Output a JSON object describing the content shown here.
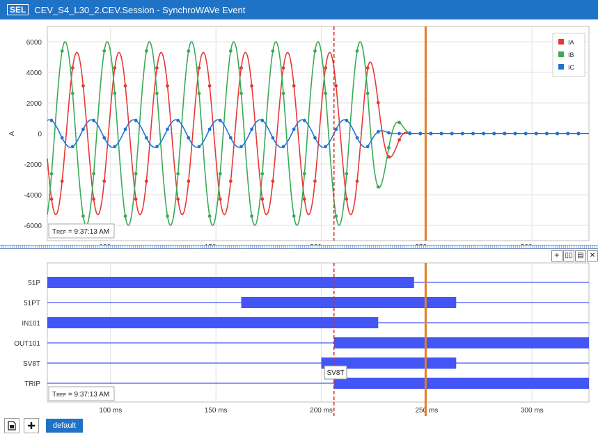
{
  "window": {
    "logo": "SEL",
    "title": "CEV_S4_L30_2.CEV.Session - SynchroWAVe Event"
  },
  "colors": {
    "accent": "#1f73c7",
    "IA": "#e53935",
    "IB": "#3aaa55",
    "IC": "#1e74d6",
    "digital": "#4455f5",
    "cursor_red": "#d32f2f",
    "cursor_orange": "#e67e22"
  },
  "analog_chart": {
    "ylabel": "A",
    "tref": "9:37:13 AM",
    "tref_prefix": "T",
    "tref_sub": "REF",
    "legend": [
      "IA",
      "IB",
      "IC"
    ]
  },
  "digital_chart": {
    "tref": "9:37:13 AM",
    "tref_prefix": "T",
    "tref_sub": "REF",
    "tooltip": "SV8T"
  },
  "pane_controls": [
    "+",
    "▯▯",
    "▤",
    "✕"
  ],
  "footer": {
    "tab": "default"
  },
  "chart_data": [
    {
      "type": "line",
      "xlabel": "",
      "ylabel": "A",
      "xlim": [
        70,
        327
      ],
      "ylim": [
        -7000,
        7000
      ],
      "x_ticks": [
        "100 ms",
        "150 ms",
        "200 ms",
        "250 ms",
        "300 ms"
      ],
      "x_tick_values": [
        100,
        150,
        200,
        250,
        300
      ],
      "y_ticks": [
        "6000",
        "4000",
        "2000",
        "0",
        "-2000",
        "-4000",
        "-6000"
      ],
      "y_tick_values": [
        6000,
        4000,
        2000,
        0,
        -2000,
        -4000,
        -6000
      ],
      "grid": true,
      "legend_position": "top-right",
      "cursors_ms": [
        206,
        249.5
      ],
      "frequency_hz": 50,
      "series": [
        {
          "name": "IA",
          "amplitude": 5300,
          "phase_deg": 18,
          "decay_start_ms": 222,
          "end_ms": 243
        },
        {
          "name": "IB",
          "amplitude": 6000,
          "phase_deg": 118,
          "decay_start_ms": 222,
          "end_ms": 243
        },
        {
          "name": "IC",
          "amplitude": 900,
          "phase_deg": -108,
          "decay_start_ms": 222,
          "end_ms": 234
        }
      ]
    },
    {
      "type": "bar",
      "xlim": [
        70,
        327
      ],
      "x_ticks": [
        "100 ms",
        "150 ms",
        "200 ms",
        "250 ms",
        "300 ms"
      ],
      "x_tick_values": [
        100,
        150,
        200,
        250,
        300
      ],
      "cursors_ms": [
        206,
        249.5
      ],
      "categories": [
        "51P",
        "51PT",
        "IN101",
        "OUT101",
        "SV8T",
        "TRIP"
      ],
      "intervals_ms": [
        {
          "name": "51P",
          "start": 70,
          "end": 244
        },
        {
          "name": "51PT",
          "start": 162,
          "end": 264
        },
        {
          "name": "IN101",
          "start": 70,
          "end": 227
        },
        {
          "name": "OUT101",
          "start": 206,
          "end": 327
        },
        {
          "name": "SV8T",
          "start": 200,
          "end": 264
        },
        {
          "name": "TRIP",
          "start": 206,
          "end": 327
        }
      ]
    }
  ]
}
